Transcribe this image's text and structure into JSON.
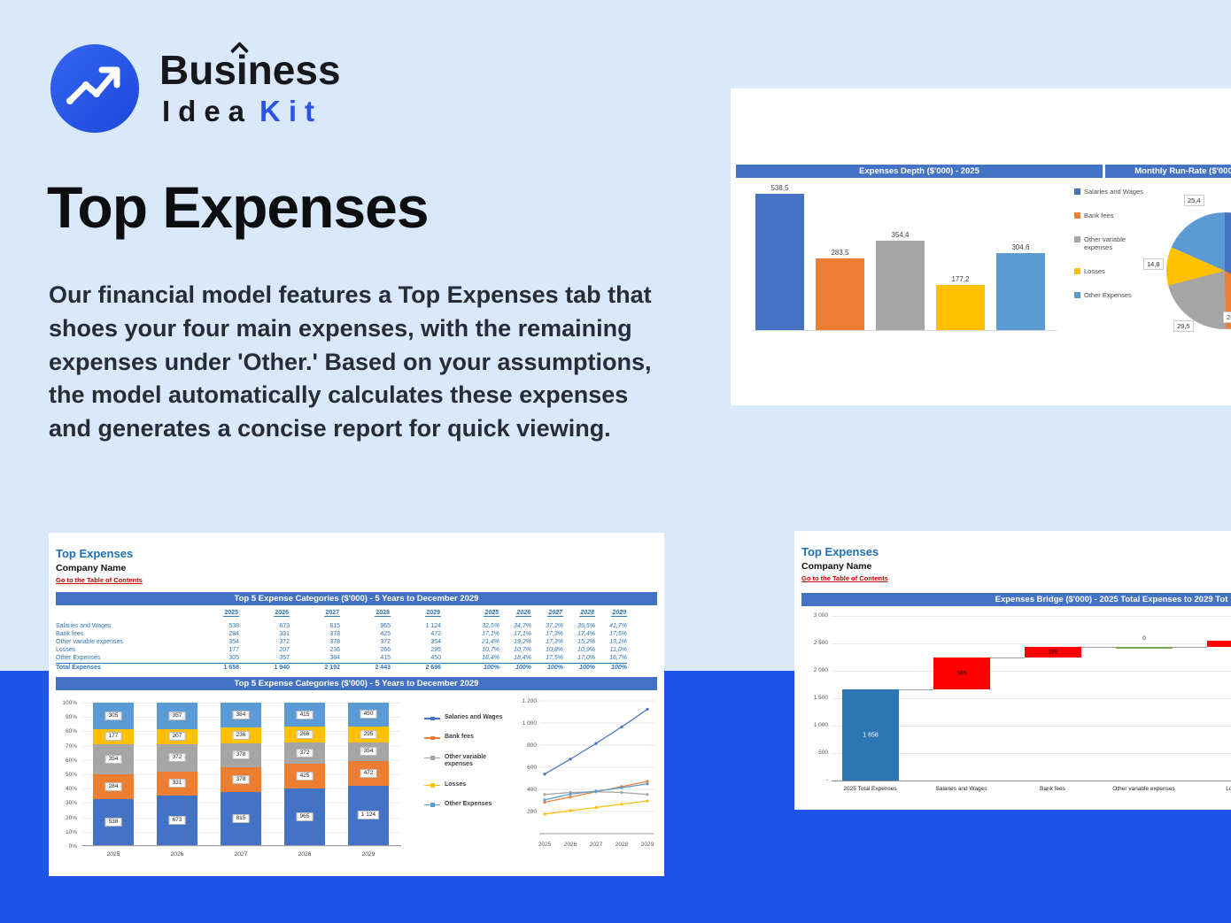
{
  "colors": {
    "page_bg": "#d9e8fb",
    "band": "#1e55e9",
    "brand_blue": "#2c53e6",
    "excel_header": "#4472c4",
    "series_palette": [
      "#4472c4",
      "#ed7d31",
      "#a5a5a5",
      "#ffc000",
      "#5b9bd5"
    ],
    "bridge_increase": "#ff0000",
    "bridge_start": "#2e75b6",
    "bridge_zero": "#70ad47",
    "link_red": "#c00000"
  },
  "brand": {
    "word_top": "Business",
    "word_idea": "Idea",
    "word_kit": "Kit"
  },
  "hero": {
    "title": "Top Expenses",
    "paragraph": "Our financial model features a Top Expenses tab that shoes your four main expenses, with the remaining expenses under 'Other.' Based on your assumptions, the model automatically calculates these expenses and generates a concise report for quick viewing."
  },
  "legend_items": [
    "Salaries and Wages",
    "Bank fees",
    "Other variable expenses",
    "Losses",
    "Other Expenses"
  ],
  "depth_card": {
    "header_left": "Expenses Depth ($'000) - 2025",
    "header_right": "Monthly Run-Rate ($'000",
    "chart_data": {
      "type": "bar",
      "categories": [
        "Salaries and Wages",
        "Bank fees",
        "Other variable expenses",
        "Losses",
        "Other Expenses"
      ],
      "values": [
        538.5,
        283.5,
        354.4,
        177.2,
        304.6
      ],
      "labels": [
        "538,5",
        "283,5",
        "354,4",
        "177,2",
        "304,6"
      ],
      "ymax": 560
    },
    "pie_chart_data": {
      "type": "pie",
      "categories": [
        "Salaries and Wages",
        "Bank fees",
        "Other variable expenses",
        "Losses",
        "Other Expenses"
      ],
      "values": [
        44.9,
        23.7,
        29.5,
        14.8,
        25.4
      ],
      "labels": {
        "other_expenses": "25,4",
        "losses": "14,8",
        "other_variable": "29,5",
        "bank_fees": "23,7"
      }
    }
  },
  "top5_card": {
    "sheet_title": "Top Expenses",
    "company_name": "Company Name",
    "toc_link": "Go to the Table of Contents",
    "table_title": "Top 5 Expense Categories ($'000) - 5 Years to December 2029",
    "chart_title": "Top 5 Expense Categories ($'000) - 5 Years to December 2029",
    "years": [
      "2025",
      "2026",
      "2027",
      "2028",
      "2029"
    ],
    "rows": [
      {
        "label": "Salaries and Wages",
        "values": [
          "538",
          "673",
          "815",
          "965",
          "1 124"
        ],
        "pcts": [
          "32,5%",
          "34,7%",
          "37,2%",
          "39,5%",
          "41,7%"
        ]
      },
      {
        "label": "Bank fees",
        "values": [
          "284",
          "331",
          "378",
          "425",
          "472"
        ],
        "pcts": [
          "17,1%",
          "17,1%",
          "17,3%",
          "17,4%",
          "17,5%"
        ]
      },
      {
        "label": "Other variable expenses",
        "values": [
          "354",
          "372",
          "378",
          "372",
          "354"
        ],
        "pcts": [
          "21,4%",
          "19,2%",
          "17,3%",
          "15,2%",
          "13,1%"
        ]
      },
      {
        "label": "Losses",
        "values": [
          "177",
          "207",
          "236",
          "266",
          "295"
        ],
        "pcts": [
          "10,7%",
          "10,7%",
          "10,8%",
          "10,9%",
          "11,0%"
        ]
      },
      {
        "label": "Other Expenses",
        "values": [
          "305",
          "357",
          "384",
          "415",
          "450"
        ],
        "pcts": [
          "18,4%",
          "18,4%",
          "17,5%",
          "17,0%",
          "16,7%"
        ]
      }
    ],
    "total_row": {
      "label": "Total Expenses",
      "values": [
        "1 658",
        "1 940",
        "2 192",
        "2 443",
        "2 696"
      ],
      "pcts": [
        "100%",
        "100%",
        "100%",
        "100%",
        "100%"
      ]
    },
    "chart_data": {
      "type": "bar",
      "stacked": true,
      "stacked_pct": true,
      "categories": [
        "2025",
        "2026",
        "2027",
        "2028",
        "2029"
      ],
      "series": [
        {
          "name": "Salaries and Wages",
          "values": [
            538,
            673,
            815,
            965,
            1124
          ],
          "labels": [
            "538",
            "673",
            "815",
            "965",
            "1 124"
          ]
        },
        {
          "name": "Bank fees",
          "values": [
            284,
            331,
            378,
            425,
            472
          ],
          "labels": [
            "284",
            "331",
            "378",
            "425",
            "472"
          ]
        },
        {
          "name": "Other variable expenses",
          "values": [
            354,
            372,
            378,
            372,
            354
          ],
          "labels": [
            "354",
            "372",
            "378",
            "372",
            "354"
          ]
        },
        {
          "name": "Losses",
          "values": [
            177,
            207,
            236,
            266,
            295
          ],
          "labels": [
            "177",
            "207",
            "236",
            "266",
            "295"
          ]
        },
        {
          "name": "Other Expenses",
          "values": [
            305,
            357,
            384,
            415,
            450
          ],
          "labels": [
            "305",
            "357",
            "384",
            "415",
            "450"
          ]
        }
      ],
      "y_ticks": [
        "100%",
        "90%",
        "80%",
        "70%",
        "60%",
        "50%",
        "40%",
        "30%",
        "20%",
        "10%",
        "0%"
      ]
    },
    "line_chart_data": {
      "type": "line",
      "x": [
        "2025",
        "2026",
        "2027",
        "2028",
        "2029"
      ],
      "y_ticks": [
        1200,
        1000,
        800,
        600,
        400,
        200
      ],
      "y_tick_labels": [
        "1 200",
        "1 000",
        "800",
        "600",
        "400",
        "200"
      ],
      "ylim": [
        0,
        1200
      ]
    }
  },
  "bridge_card": {
    "sheet_title": "Top Expenses",
    "company_name": "Company Name",
    "toc_link": "Go to the Table of Contents",
    "chart_title": "Expenses Bridge ($'000) - 2025 Total Expenses to 2029 Tot",
    "chart_data": {
      "type": "waterfall",
      "categories": [
        "2025 Total Expenses",
        "Salaries and Wages",
        "Bank fees",
        "Other variable expenses",
        "Losses"
      ],
      "bars": [
        {
          "label": "1 658",
          "start": 0,
          "end": 1658,
          "kind": "start"
        },
        {
          "label": "585",
          "start": 1658,
          "end": 2243,
          "kind": "increase"
        },
        {
          "label": "189",
          "start": 2243,
          "end": 2432,
          "kind": "increase"
        },
        {
          "label": "0",
          "start": 2432,
          "end": 2432,
          "kind": "zero"
        },
        {
          "label": "",
          "start": 2432,
          "end": 2550,
          "kind": "increase"
        }
      ],
      "y_tick_labels": [
        "3 000",
        "2 500",
        "2 000",
        "1 500",
        "1 000",
        "500",
        "-"
      ],
      "ylim": [
        0,
        3000
      ]
    }
  }
}
